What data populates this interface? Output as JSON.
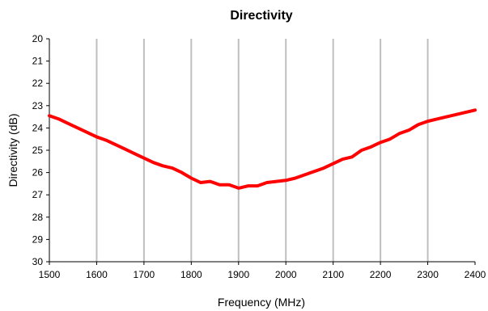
{
  "chart_data": {
    "type": "line",
    "title": "Directivity",
    "xlabel": "Frequency (MHz)",
    "ylabel": "Directivity (dB)",
    "xlim": [
      1500,
      2400
    ],
    "ylim": [
      20,
      30
    ],
    "y_inverted": true,
    "grid": {
      "vertical": true,
      "horizontal": false
    },
    "x_ticks": [
      1500,
      1600,
      1700,
      1800,
      1900,
      2000,
      2100,
      2200,
      2300,
      2400
    ],
    "y_ticks": [
      20,
      21,
      22,
      23,
      24,
      25,
      26,
      27,
      28,
      29,
      30
    ],
    "series": [
      {
        "color": "#ff0000",
        "x": [
          1500,
          1520,
          1540,
          1560,
          1580,
          1600,
          1620,
          1640,
          1660,
          1680,
          1700,
          1720,
          1740,
          1760,
          1780,
          1800,
          1820,
          1840,
          1860,
          1880,
          1900,
          1920,
          1940,
          1960,
          1980,
          2000,
          2020,
          2040,
          2060,
          2080,
          2100,
          2120,
          2140,
          2160,
          2180,
          2200,
          2220,
          2240,
          2260,
          2280,
          2300,
          2320,
          2340,
          2360,
          2380,
          2400
        ],
        "values": [
          23.45,
          23.6,
          23.8,
          24.0,
          24.2,
          24.4,
          24.55,
          24.75,
          24.95,
          25.15,
          25.35,
          25.55,
          25.7,
          25.8,
          26.0,
          26.25,
          26.45,
          26.4,
          26.55,
          26.55,
          26.7,
          26.6,
          26.6,
          26.45,
          26.4,
          26.35,
          26.25,
          26.1,
          25.95,
          25.8,
          25.6,
          25.4,
          25.3,
          25.0,
          24.85,
          24.65,
          24.5,
          24.25,
          24.1,
          23.85,
          23.7,
          23.6,
          23.5,
          23.4,
          23.3,
          23.2
        ]
      }
    ]
  }
}
